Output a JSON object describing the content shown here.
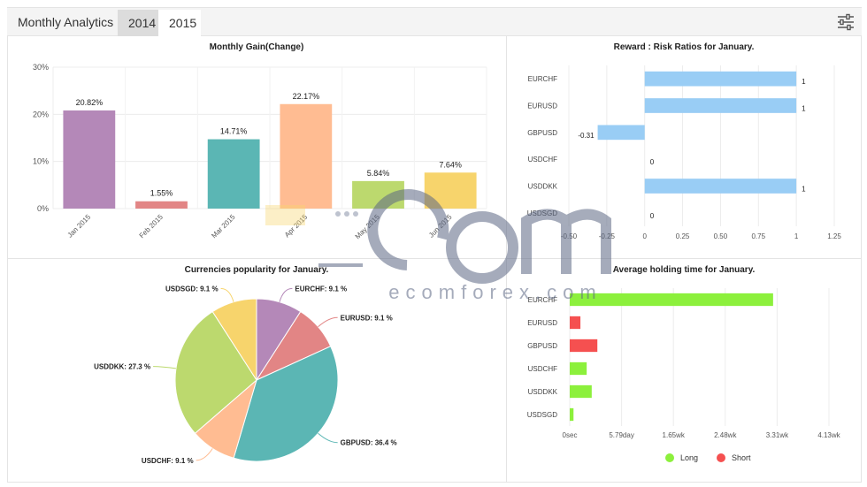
{
  "header": {
    "title": "Monthly Analytics",
    "tabs": [
      {
        "label": "2014"
      },
      {
        "label": "2015"
      }
    ]
  },
  "icons": {
    "settings": "sliders-icon"
  },
  "watermark": {
    "text": "ecomforex.com"
  },
  "colors": {
    "purple": "#b488b8",
    "red": "#e28585",
    "teal": "#5bb6b4",
    "orange": "#ffbc92",
    "lime": "#bcd96e",
    "yellow": "#f7d46c",
    "blue": "#99cdf5",
    "green": "#8cf03c",
    "short": "#f55050"
  },
  "chart_data": [
    {
      "type": "bar",
      "title": "Monthly Gain(Change)",
      "categories": [
        "Jan 2015",
        "Feb 2015",
        "Mar 2015",
        "Apr 2015",
        "May 2015",
        "Jun 2015"
      ],
      "values": [
        20.82,
        1.55,
        14.71,
        22.17,
        5.84,
        7.64
      ],
      "data_labels": [
        "20.82%",
        "1.55%",
        "14.71%",
        "22.17%",
        "5.84%",
        "7.64%"
      ],
      "yticks": [
        "0%",
        "10%",
        "20%",
        "30%"
      ],
      "ylim": [
        0,
        30
      ],
      "bar_colors": [
        "#b488b8",
        "#e28585",
        "#5bb6b4",
        "#ffbc92",
        "#bcd96e",
        "#f7d46c"
      ],
      "grid": true
    },
    {
      "type": "bar",
      "orientation": "horizontal",
      "title": "Reward : Risk Ratios for January.",
      "categories": [
        "EURCHF",
        "EURUSD",
        "GBPUSD",
        "USDCHF",
        "USDDKK",
        "USDSGD"
      ],
      "values": [
        1,
        1,
        -0.31,
        0,
        1,
        0
      ],
      "data_labels": [
        "1",
        "1",
        "-0.31",
        "0",
        "1",
        "0"
      ],
      "xticks": [
        "-0.50",
        "-0.25",
        "0",
        "0.25",
        "0.50",
        "0.75",
        "1",
        "1.25"
      ],
      "xlim": [
        -0.5,
        1.25
      ],
      "color": "#99cdf5",
      "grid": true
    },
    {
      "type": "pie",
      "title": "Currencies popularity for January.",
      "labels": [
        "EURCHF",
        "EURUSD",
        "GBPUSD",
        "USDCHF",
        "USDDKK",
        "USDSGD"
      ],
      "values": [
        9.1,
        9.1,
        36.4,
        9.1,
        27.3,
        9.1
      ],
      "slice_labels": [
        "EURCHF: 9.1 %",
        "EURUSD: 9.1 %",
        "GBPUSD: 36.4 %",
        "USDCHF: 9.1 %",
        "USDDKK: 27.3 %",
        "USDSGD: 9.1 %"
      ],
      "colors": [
        "#b488b8",
        "#e28585",
        "#5bb6b4",
        "#ffbc92",
        "#bcd96e",
        "#f7d46c"
      ]
    },
    {
      "type": "bar",
      "orientation": "horizontal",
      "title": "Average holding time for January.",
      "categories": [
        "EURCHF",
        "EURUSD",
        "GBPUSD",
        "USDCHF",
        "USDDKK",
        "USDSGD"
      ],
      "xticks": [
        "0sec",
        "5.79day",
        "1.65wk",
        "2.48wk",
        "3.31wk",
        "4.13wk"
      ],
      "xlim": [
        0,
        4.13
      ],
      "series": [
        {
          "name": "Long",
          "color": "#8cf03c",
          "values": [
            3.24,
            0,
            0,
            0.27,
            0.35,
            0.06
          ]
        },
        {
          "name": "Short",
          "color": "#f55050",
          "values": [
            0,
            0.17,
            0.44,
            0,
            0,
            0
          ]
        }
      ],
      "legend": "bottom",
      "grid": true
    }
  ]
}
